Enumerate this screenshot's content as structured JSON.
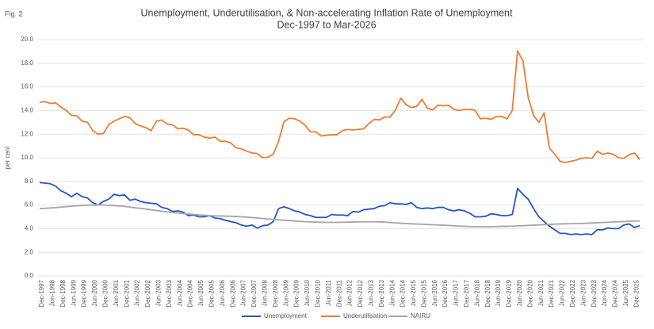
{
  "fig_label": "Fig. 2",
  "chart_data": {
    "type": "line",
    "title": "Unemployment, Underutilisation, & Non-accelerating Inflation Rate of Unemployment",
    "subtitle": "Dec-1997 to Mar-2026",
    "y_label": "per cent",
    "grid": true,
    "legend": "bottom",
    "ylim": [
      0,
      20
    ],
    "yticks": [
      {
        "value": 0,
        "label": "0.0"
      },
      {
        "value": 2,
        "label": "2.0"
      },
      {
        "value": 4,
        "label": "4.0"
      },
      {
        "value": 6,
        "label": "6.0"
      },
      {
        "value": 8,
        "label": "8.0"
      },
      {
        "value": 10,
        "label": "10.0"
      },
      {
        "value": 12,
        "label": "12.0"
      },
      {
        "value": 14,
        "label": "14.0"
      },
      {
        "value": 16,
        "label": "16.0"
      },
      {
        "value": 18,
        "label": "18.0"
      },
      {
        "value": 20,
        "label": "20.0"
      }
    ],
    "categories": [
      "Dec-1997",
      null,
      "Jun-1998",
      null,
      "Dec-1998",
      null,
      "Jun-1999",
      null,
      "Dec-1999",
      null,
      "Jun-2000",
      null,
      "Dec-2000",
      null,
      "Jun-2001",
      null,
      "Dec-2001",
      null,
      "Jun-2002",
      null,
      "Dec-2002",
      null,
      "Jun-2003",
      null,
      "Dec-2003",
      null,
      "Jun-2004",
      null,
      "Dec-2004",
      null,
      "Jun-2005",
      null,
      "Dec-2005",
      null,
      "Jun-2006",
      null,
      "Dec-2006",
      null,
      "Jun-2007",
      null,
      "Dec-2007",
      null,
      "Jun-2008",
      null,
      "Dec-2008",
      null,
      "Jun-2009",
      null,
      "Dec-2009",
      null,
      "Jun-2010",
      null,
      "Dec-2010",
      null,
      "Jun-2011",
      null,
      "Dec-2011",
      null,
      "Jun-2012",
      null,
      "Dec-2012",
      null,
      "Jun-2013",
      null,
      "Dec-2013",
      null,
      "Jun-2014",
      null,
      "Dec-2014",
      null,
      "Jun-2015",
      null,
      "Dec-2015",
      null,
      "Jun-2016",
      null,
      "Dec-2016",
      null,
      "Jun-2017",
      null,
      "Dec-2017",
      null,
      "Jun-2018",
      null,
      "Dec-2018",
      null,
      "Jun-2019",
      null,
      "Dec-2019",
      null,
      "Jun-2020",
      null,
      "Dec-2020",
      null,
      "Jun-2021",
      null,
      "Dec-2021",
      null,
      "Jun-2022",
      null,
      "Dec-2022",
      null,
      "Jun-2023",
      null,
      "Dec-2023",
      null,
      "Jun-2024",
      null,
      "Dec-2024",
      null,
      "Jun-2025",
      null,
      "Dec-2025",
      null
    ],
    "series": [
      {
        "name": "Unemployment",
        "color": "#2256c2",
        "values": [
          7.9,
          7.85,
          7.8,
          7.6,
          7.2,
          7.0,
          6.7,
          7.0,
          6.7,
          6.6,
          6.2,
          6.0,
          6.3,
          6.5,
          6.9,
          6.8,
          6.85,
          6.4,
          6.5,
          6.3,
          6.2,
          6.15,
          6.1,
          5.8,
          5.7,
          5.45,
          5.5,
          5.4,
          5.1,
          5.15,
          5.0,
          5.0,
          5.1,
          4.9,
          4.85,
          4.7,
          4.6,
          4.5,
          4.3,
          4.2,
          4.3,
          4.05,
          4.25,
          4.3,
          4.6,
          5.7,
          5.85,
          5.7,
          5.5,
          5.4,
          5.2,
          5.1,
          4.95,
          4.95,
          4.95,
          5.2,
          5.15,
          5.15,
          5.1,
          5.45,
          5.4,
          5.6,
          5.65,
          5.7,
          5.9,
          5.95,
          6.2,
          6.1,
          6.1,
          6.05,
          6.2,
          5.8,
          5.7,
          5.75,
          5.7,
          5.8,
          5.8,
          5.6,
          5.5,
          5.6,
          5.5,
          5.3,
          5.0,
          5.0,
          5.05,
          5.25,
          5.2,
          5.1,
          5.1,
          5.2,
          7.4,
          6.9,
          6.5,
          5.7,
          5.0,
          4.6,
          4.2,
          3.9,
          3.6,
          3.6,
          3.5,
          3.55,
          3.5,
          3.55,
          3.5,
          3.9,
          3.9,
          4.05,
          4.0,
          4.0,
          4.3,
          4.4,
          4.1,
          4.25
        ]
      },
      {
        "name": "Underutilisation",
        "color": "#ed7d31",
        "values": [
          14.7,
          14.75,
          14.6,
          14.65,
          14.3,
          14.0,
          13.6,
          13.55,
          13.1,
          13.0,
          12.3,
          12.0,
          12.05,
          12.8,
          13.1,
          13.3,
          13.5,
          13.4,
          12.9,
          12.7,
          12.55,
          12.3,
          13.1,
          13.2,
          12.85,
          12.8,
          12.45,
          12.5,
          12.35,
          11.95,
          11.95,
          11.75,
          11.65,
          11.75,
          11.4,
          11.4,
          11.25,
          10.85,
          10.75,
          10.55,
          10.4,
          10.35,
          10.0,
          10.05,
          10.3,
          11.4,
          13.05,
          13.35,
          13.3,
          13.1,
          12.75,
          12.2,
          12.2,
          11.85,
          11.9,
          11.95,
          11.95,
          12.3,
          12.4,
          12.35,
          12.4,
          12.45,
          12.9,
          13.25,
          13.2,
          13.45,
          13.45,
          14.05,
          15.05,
          14.5,
          14.25,
          14.35,
          14.95,
          14.2,
          14.05,
          14.45,
          14.4,
          14.45,
          14.1,
          14.0,
          14.1,
          14.1,
          14.0,
          13.3,
          13.35,
          13.25,
          13.5,
          13.5,
          13.3,
          14.0,
          19.05,
          18.2,
          15.1,
          13.6,
          13.0,
          13.8,
          10.8,
          10.3,
          9.7,
          9.6,
          9.7,
          9.8,
          9.95,
          10.0,
          9.95,
          10.55,
          10.3,
          10.4,
          10.3,
          10.0,
          9.95,
          10.25,
          10.4,
          9.85
        ]
      },
      {
        "name": "NAIRU",
        "color": "#a5a5a5",
        "values": [
          5.7,
          5.72,
          5.75,
          5.78,
          5.82,
          5.86,
          5.9,
          5.93,
          5.96,
          5.98,
          6.0,
          6.01,
          6.0,
          5.98,
          5.95,
          5.92,
          5.88,
          5.82,
          5.76,
          5.72,
          5.66,
          5.6,
          5.54,
          5.48,
          5.42,
          5.37,
          5.32,
          5.28,
          5.24,
          5.2,
          5.16,
          5.13,
          5.1,
          5.08,
          5.07,
          5.06,
          5.05,
          5.03,
          5.0,
          4.97,
          4.94,
          4.9,
          4.86,
          4.82,
          4.78,
          4.74,
          4.71,
          4.68,
          4.65,
          4.62,
          4.59,
          4.57,
          4.55,
          4.54,
          4.53,
          4.53,
          4.53,
          4.54,
          4.55,
          4.56,
          4.57,
          4.58,
          4.58,
          4.58,
          4.57,
          4.55,
          4.52,
          4.49,
          4.46,
          4.43,
          4.41,
          4.39,
          4.37,
          4.35,
          4.33,
          4.31,
          4.29,
          4.27,
          4.24,
          4.22,
          4.2,
          4.18,
          4.17,
          4.16,
          4.16,
          4.17,
          4.18,
          4.19,
          4.2,
          4.21,
          4.23,
          4.25,
          4.27,
          4.29,
          4.31,
          4.34,
          4.36,
          4.38,
          4.4,
          4.41,
          4.42,
          4.43,
          4.44,
          4.46,
          4.48,
          4.5,
          4.52,
          4.54,
          4.56,
          4.58,
          4.6,
          4.62,
          4.64,
          4.65
        ]
      }
    ]
  }
}
